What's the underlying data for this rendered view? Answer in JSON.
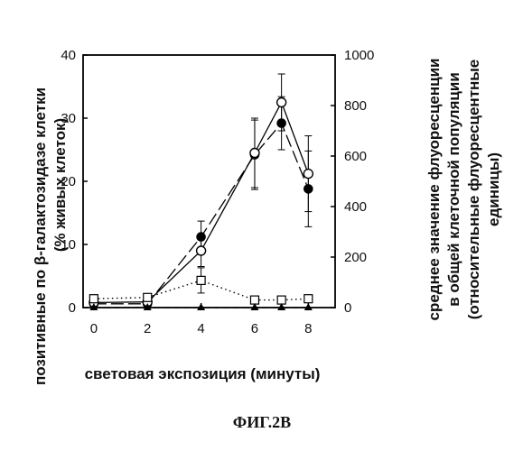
{
  "chart_data": {
    "type": "line",
    "x": [
      0,
      2,
      4,
      6,
      7,
      8
    ],
    "xlim": [
      -0.4,
      9
    ],
    "xticks": [
      0,
      2,
      4,
      6,
      8
    ],
    "ylim_left": [
      0,
      40
    ],
    "yticks_left": [
      0,
      10,
      20,
      30,
      40
    ],
    "ylim_right": [
      0,
      1000
    ],
    "yticks_right": [
      0,
      200,
      400,
      600,
      800,
      1000
    ],
    "xlabel": "световая экспозиция (минуты)",
    "ylabel_left": "позитивные по β-галактозидазе клетки",
    "ylabel_left_2": "(% живых клеток)",
    "ylabel_right_1": "среднее значение флуоресценции",
    "ylabel_right_2": "в общей клеточной популяции",
    "ylabel_right_3": "(относительные флуоресцентные",
    "ylabel_right_4": "единицы)",
    "series": [
      {
        "marker": "filled-circle",
        "line": "long-dash",
        "axis": "left",
        "values": [
          0.6,
          0.6,
          11.2,
          24.2,
          29.2,
          18.8
        ],
        "err": [
          0,
          0,
          2.5,
          5.5,
          4.2,
          6
        ]
      },
      {
        "marker": "open-circle",
        "line": "solid",
        "axis": "left",
        "values": [
          0.8,
          0.9,
          9.0,
          24.5,
          32.5,
          21.2
        ],
        "err": [
          0,
          0,
          2.5,
          5.5,
          4.5,
          6
        ]
      },
      {
        "marker": "open-square",
        "line": "dotted",
        "axis": "left",
        "values": [
          1.4,
          1.6,
          4.3,
          1.2,
          1.2,
          1.4
        ],
        "err": [
          0,
          0,
          2,
          0,
          0,
          0
        ]
      },
      {
        "marker": "filled-triangle",
        "line": "dash",
        "axis": "left",
        "values": [
          0,
          0,
          0,
          0,
          0,
          0
        ],
        "err": [
          0,
          0,
          0,
          0,
          0,
          0
        ]
      }
    ]
  },
  "caption": "ФИГ.2В"
}
